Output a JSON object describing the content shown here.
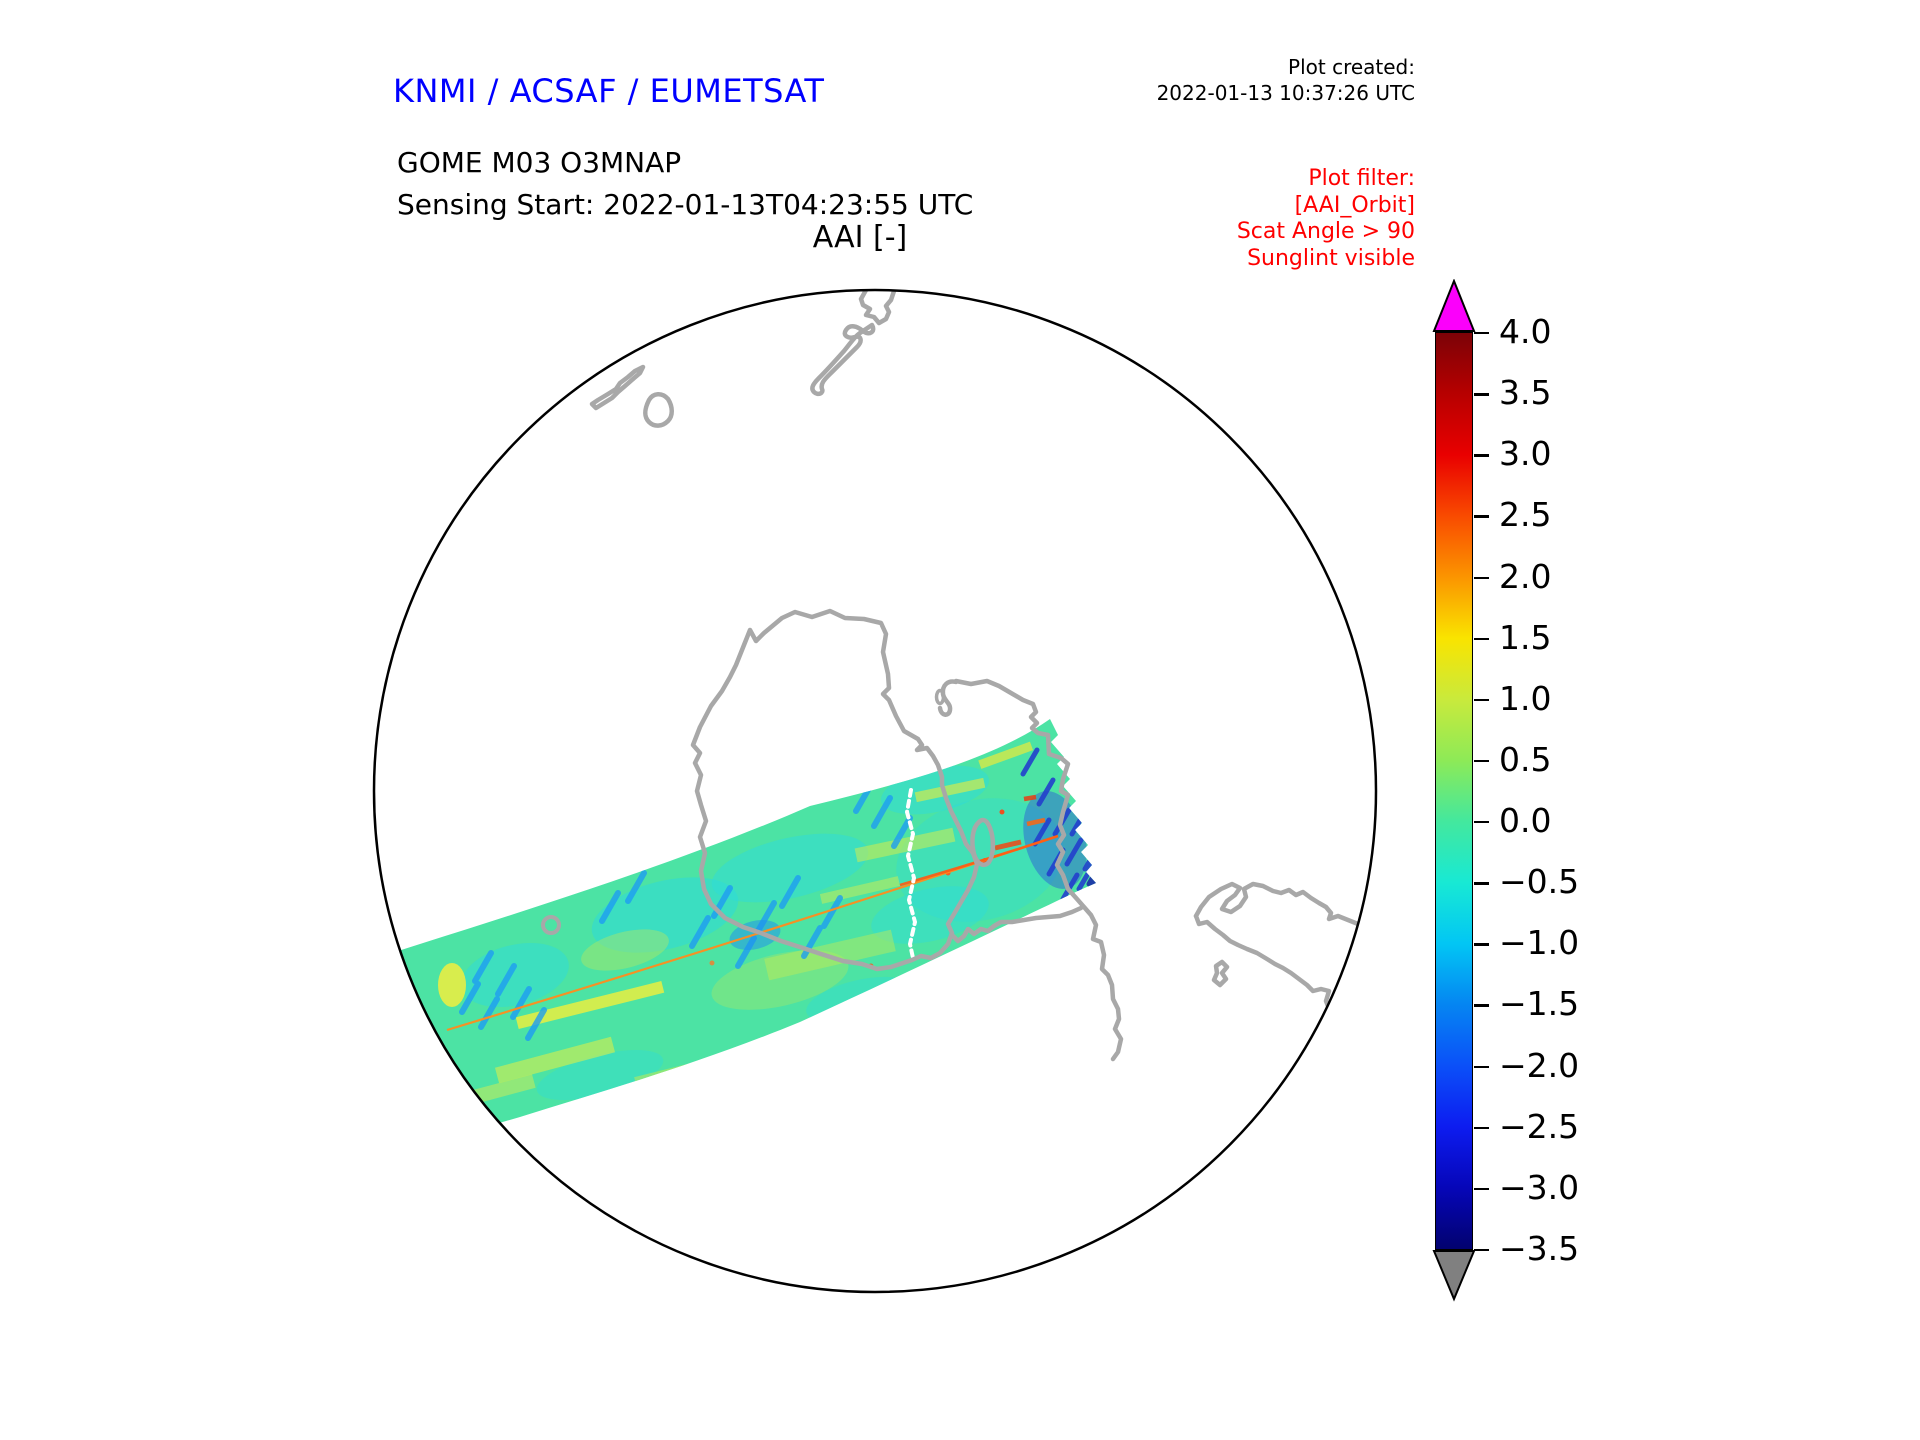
{
  "header": {
    "agency": "KNMI / ACSAF / EUMETSAT",
    "product": "GOME M03 O3MNAP",
    "sensing_start": "Sensing Start: 2022-01-13T04:23:55 UTC",
    "plot_created_label": "Plot created:",
    "plot_created_time": "2022-01-13 10:37:26 UTC"
  },
  "plot": {
    "title": "AAI [-]",
    "filter_lines": [
      "Plot filter:",
      "[AAI_Orbit]",
      "Scat Angle > 90",
      "Sunglint visible"
    ]
  },
  "colors": {
    "agency": "#0000ff",
    "filter": "#ff0000",
    "coastline": "#a8a8a8",
    "outline": "#000000",
    "over": "#fb00fb",
    "under": "#808080",
    "sunglint": "#ff8c1e",
    "missing": "#ffffff"
  },
  "chart_data": {
    "type": "heatmap",
    "title": "AAI [-]",
    "variable": "Absorbing Aerosol Index (dimensionless)",
    "projection": "orthographic globe view over the South Pole / New Zealand sector with gray coastlines",
    "swath": {
      "description": "Single GOME M03 (Metop-B) orbit swath crossing the globe from lower-left to centre-right; AAI values mostly between -1.0 and +1.0 (greens and cyans) with scattered blue minima down to about -2.5, yellow patches near +1.0, sparse orange/red maxima near the swath tip, a thin orange sunglint stripe along the swath centre line and a white dashed missing-data scan line near x of the swath centre.",
      "typical_value_range": [
        -1.0,
        1.0
      ],
      "palette_samples": [
        "#4ce3a4",
        "#2edbd9",
        "#c9ea3c",
        "#f3ef3a",
        "#1f9df2",
        "#1a6ae4",
        "#2340cc",
        "#e8501c"
      ]
    },
    "colorbar": {
      "orientation": "vertical",
      "vmin": -3.5,
      "vmax": 4.0,
      "tick_step": 0.5,
      "tick_labels": [
        "4.0",
        "3.5",
        "3.0",
        "2.5",
        "2.0",
        "1.5",
        "1.0",
        "0.5",
        "0.0",
        "−0.5",
        "−1.0",
        "−1.5",
        "−2.0",
        "−2.5",
        "−3.0",
        "−3.5"
      ],
      "over_arrow_color": "#fb00fb",
      "under_arrow_color": "#808080",
      "gradient_stops": [
        {
          "value": 4.0,
          "color": "#7c0207"
        },
        {
          "value": 3.5,
          "color": "#b70000"
        },
        {
          "value": 3.0,
          "color": "#e90000"
        },
        {
          "value": 2.5,
          "color": "#f94b00"
        },
        {
          "value": 2.0,
          "color": "#fb9500"
        },
        {
          "value": 1.5,
          "color": "#f9e400"
        },
        {
          "value": 1.0,
          "color": "#c9ea3c"
        },
        {
          "value": 0.5,
          "color": "#8dea57"
        },
        {
          "value": 0.0,
          "color": "#43e89e"
        },
        {
          "value": -0.5,
          "color": "#18e9d4"
        },
        {
          "value": -1.0,
          "color": "#02c6f4"
        },
        {
          "value": -1.5,
          "color": "#0585f2"
        },
        {
          "value": -2.0,
          "color": "#0b50f8"
        },
        {
          "value": -2.5,
          "color": "#0d1cf0"
        },
        {
          "value": -3.0,
          "color": "#0606b8"
        },
        {
          "value": -3.5,
          "color": "#02026f"
        }
      ]
    }
  }
}
